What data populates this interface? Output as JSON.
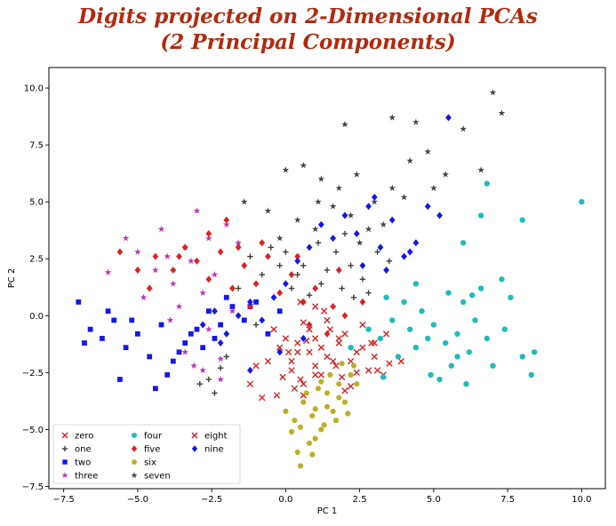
{
  "chart_data": {
    "type": "scatter",
    "title_lines": [
      "Digits projected on 2-Dimensional PCAs",
      "(2 Principal Components)"
    ],
    "xlabel": "PC 1",
    "ylabel": "PC 2",
    "xlim": [
      -8.0,
      10.8
    ],
    "ylim": [
      -7.6,
      10.9
    ],
    "xticks": [
      -7.5,
      -5.0,
      -2.5,
      0.0,
      2.5,
      5.0,
      7.5,
      10.0
    ],
    "xtick_labels": [
      "−7.5",
      "−5.0",
      "−2.5",
      "0.0",
      "2.5",
      "5.0",
      "7.5",
      "10.0"
    ],
    "yticks": [
      -7.5,
      -5.0,
      -2.5,
      0.0,
      2.5,
      5.0,
      7.5,
      10.0
    ],
    "ytick_labels": [
      "−7.5",
      "−5.0",
      "−2.5",
      "0.0",
      "2.5",
      "5.0",
      "7.5",
      "10.0"
    ],
    "grid": false,
    "legend_position": "lower-left",
    "legend_columns": 3,
    "series": [
      {
        "name": "zero",
        "marker": "x",
        "color": "#dd2222",
        "points": [
          [
            0.6,
            -0.3
          ],
          [
            1.0,
            -1.0
          ],
          [
            0.8,
            -1.6
          ],
          [
            1.4,
            -1.8
          ],
          [
            1.7,
            -2.2
          ],
          [
            2.2,
            -2.0
          ],
          [
            2.6,
            -1.4
          ],
          [
            3.0,
            -1.8
          ],
          [
            3.5,
            -2.1
          ],
          [
            3.9,
            -2.0
          ],
          [
            2.0,
            -3.3
          ],
          [
            1.2,
            -2.6
          ],
          [
            0.2,
            -2.4
          ],
          [
            0.3,
            -3.2
          ],
          [
            0.6,
            -3.5
          ],
          [
            1.5,
            -0.6
          ],
          [
            0.4,
            -1.2
          ],
          [
            1.8,
            -1.0
          ],
          [
            2.9,
            -1.2
          ],
          [
            3.3,
            -2.6
          ],
          [
            1.0,
            -2.2
          ],
          [
            0.1,
            -1.6
          ],
          [
            2.4,
            -2.5
          ],
          [
            -1.0,
            -2.2
          ],
          [
            -0.8,
            -3.6
          ],
          [
            -1.2,
            -3.0
          ],
          [
            -0.3,
            -3.5
          ],
          [
            3.1,
            -2.4
          ],
          [
            1.3,
            0.2
          ],
          [
            0.5,
            -2.8
          ]
        ]
      },
      {
        "name": "one",
        "marker": "+",
        "color": "#3a4030",
        "points": [
          [
            -1.2,
            2.6
          ],
          [
            -0.5,
            3.0
          ],
          [
            0.0,
            2.8
          ],
          [
            0.6,
            2.2
          ],
          [
            1.1,
            3.2
          ],
          [
            1.7,
            2.8
          ],
          [
            2.2,
            2.2
          ],
          [
            2.6,
            1.6
          ],
          [
            1.9,
            1.2
          ],
          [
            1.2,
            1.4
          ],
          [
            0.4,
            1.8
          ],
          [
            -0.2,
            2.2
          ],
          [
            -0.8,
            1.8
          ],
          [
            -1.6,
            1.2
          ],
          [
            -2.0,
            -1.8
          ],
          [
            -2.6,
            -2.8
          ],
          [
            -2.4,
            -3.4
          ],
          [
            -2.9,
            -3.0
          ],
          [
            -2.2,
            -2.3
          ],
          [
            0.8,
            0.9
          ],
          [
            1.6,
            0.4
          ],
          [
            2.3,
            0.8
          ],
          [
            2.8,
            1.0
          ],
          [
            3.1,
            2.8
          ],
          [
            3.5,
            2.4
          ],
          [
            -0.4,
            0.8
          ],
          [
            0.2,
            1.2
          ],
          [
            2.0,
            3.6
          ],
          [
            1.4,
            2.0
          ],
          [
            -1.0,
            -0.4
          ]
        ]
      },
      {
        "name": "two",
        "marker": "s",
        "color": "#1515ee",
        "points": [
          [
            -7.0,
            0.6
          ],
          [
            -6.6,
            -0.6
          ],
          [
            -6.2,
            -1.0
          ],
          [
            -5.8,
            -0.2
          ],
          [
            -5.4,
            -1.4
          ],
          [
            -5.0,
            -0.8
          ],
          [
            -4.6,
            -1.8
          ],
          [
            -4.2,
            -0.4
          ],
          [
            -3.8,
            -2.0
          ],
          [
            -3.4,
            -1.2
          ],
          [
            -3.0,
            -0.6
          ],
          [
            -2.6,
            0.2
          ],
          [
            -2.2,
            -0.4
          ],
          [
            -1.8,
            0.4
          ],
          [
            -1.4,
            -0.2
          ],
          [
            -1.0,
            0.6
          ],
          [
            -0.6,
            -0.8
          ],
          [
            -0.2,
            0.2
          ],
          [
            -4.4,
            -3.2
          ],
          [
            -5.6,
            -2.8
          ],
          [
            -6.8,
            -1.2
          ],
          [
            -5.2,
            -0.2
          ],
          [
            -3.6,
            -1.6
          ],
          [
            -2.8,
            -1.4
          ],
          [
            -2.0,
            0.8
          ],
          [
            -1.2,
            0.4
          ],
          [
            -4.0,
            -2.6
          ],
          [
            -6.0,
            0.2
          ],
          [
            -3.2,
            -0.8
          ],
          [
            -2.4,
            -1.0
          ]
        ]
      },
      {
        "name": "three",
        "marker": "*",
        "color": "#bb33bb",
        "points": [
          [
            -5.0,
            2.8
          ],
          [
            -4.4,
            2.0
          ],
          [
            -3.8,
            1.4
          ],
          [
            -3.2,
            2.4
          ],
          [
            -2.8,
            1.0
          ],
          [
            -2.4,
            1.8
          ],
          [
            -2.0,
            4.0
          ],
          [
            -3.0,
            4.6
          ],
          [
            -4.2,
            3.8
          ],
          [
            -5.4,
            3.4
          ],
          [
            -6.0,
            1.9
          ],
          [
            -3.6,
            0.4
          ],
          [
            -2.6,
            -0.6
          ],
          [
            -3.4,
            -1.6
          ],
          [
            -2.8,
            -2.4
          ],
          [
            -2.2,
            -1.9
          ],
          [
            -3.9,
            -0.2
          ],
          [
            -4.8,
            0.8
          ],
          [
            -1.6,
            3.2
          ],
          [
            -2.6,
            3.4
          ],
          [
            -3.4,
            3.0
          ],
          [
            -4.0,
            2.6
          ],
          [
            -1.8,
            0.2
          ],
          [
            -2.2,
            -2.8
          ],
          [
            -3.1,
            -2.2
          ]
        ]
      },
      {
        "name": "four",
        "marker": "o",
        "color": "#22bbbb",
        "points": [
          [
            2.2,
            -1.4
          ],
          [
            2.8,
            -0.6
          ],
          [
            3.2,
            -1.0
          ],
          [
            3.6,
            -0.2
          ],
          [
            3.8,
            -1.8
          ],
          [
            4.2,
            -0.6
          ],
          [
            4.4,
            -1.4
          ],
          [
            4.6,
            0.2
          ],
          [
            4.8,
            -1.0
          ],
          [
            5.0,
            -0.4
          ],
          [
            5.4,
            -1.2
          ],
          [
            5.6,
            -2.2
          ],
          [
            5.8,
            -0.8
          ],
          [
            6.0,
            0.6
          ],
          [
            6.2,
            -1.6
          ],
          [
            6.4,
            -0.2
          ],
          [
            6.6,
            1.2
          ],
          [
            6.8,
            -1.0
          ],
          [
            7.0,
            -2.2
          ],
          [
            7.4,
            -0.6
          ],
          [
            7.6,
            0.8
          ],
          [
            8.0,
            -1.8
          ],
          [
            8.3,
            -2.6
          ],
          [
            8.4,
            -1.6
          ],
          [
            7.3,
            1.6
          ],
          [
            6.0,
            3.2
          ],
          [
            6.6,
            4.4
          ],
          [
            6.8,
            5.8
          ],
          [
            8.0,
            4.2
          ],
          [
            10.0,
            5.0
          ],
          [
            5.5,
            1.0
          ],
          [
            4.4,
            1.4
          ],
          [
            4.0,
            0.6
          ],
          [
            3.4,
            0.8
          ],
          [
            5.2,
            -2.8
          ],
          [
            6.1,
            -3.0
          ],
          [
            4.9,
            -2.6
          ],
          [
            3.3,
            -2.7
          ],
          [
            5.8,
            -1.8
          ],
          [
            6.3,
            0.9
          ]
        ]
      },
      {
        "name": "five",
        "marker": "D",
        "color": "#dd2222",
        "points": [
          [
            -5.6,
            2.8
          ],
          [
            -5.0,
            2.0
          ],
          [
            -4.4,
            2.6
          ],
          [
            -3.8,
            2.0
          ],
          [
            -3.4,
            3.0
          ],
          [
            -3.0,
            2.4
          ],
          [
            -2.6,
            1.6
          ],
          [
            -2.2,
            2.8
          ],
          [
            -1.8,
            1.2
          ],
          [
            -1.4,
            2.2
          ],
          [
            -1.0,
            1.4
          ],
          [
            -0.6,
            2.6
          ],
          [
            -0.2,
            1.0
          ],
          [
            0.2,
            1.8
          ],
          [
            0.6,
            0.6
          ],
          [
            1.0,
            1.2
          ],
          [
            1.6,
            0.4
          ],
          [
            2.0,
            0.0
          ],
          [
            1.4,
            -0.8
          ],
          [
            0.8,
            -0.4
          ],
          [
            -2.6,
            3.6
          ],
          [
            -2.0,
            4.2
          ],
          [
            -1.6,
            3.0
          ],
          [
            -3.6,
            2.6
          ],
          [
            -4.6,
            1.2
          ],
          [
            0.4,
            2.6
          ],
          [
            -0.8,
            3.2
          ],
          [
            1.8,
            2.0
          ],
          [
            2.6,
            0.6
          ],
          [
            -1.2,
            0.4
          ]
        ]
      },
      {
        "name": "six",
        "marker": "h",
        "color": "#bbb022",
        "points": [
          [
            0.0,
            -4.2
          ],
          [
            0.3,
            -4.6
          ],
          [
            0.6,
            -3.8
          ],
          [
            0.9,
            -4.4
          ],
          [
            1.2,
            -5.0
          ],
          [
            1.4,
            -3.4
          ],
          [
            1.6,
            -4.2
          ],
          [
            1.8,
            -3.0
          ],
          [
            2.0,
            -3.8
          ],
          [
            2.2,
            -2.6
          ],
          [
            0.8,
            -5.6
          ],
          [
            0.4,
            -6.0
          ],
          [
            0.5,
            -6.6
          ],
          [
            1.0,
            -5.4
          ],
          [
            1.3,
            -4.8
          ],
          [
            1.7,
            -4.6
          ],
          [
            2.4,
            -3.0
          ],
          [
            1.1,
            -3.2
          ],
          [
            0.2,
            -5.1
          ],
          [
            1.9,
            -2.1
          ],
          [
            1.5,
            -2.6
          ],
          [
            0.7,
            -3.4
          ],
          [
            1.4,
            -4.0
          ],
          [
            2.1,
            -4.3
          ],
          [
            1.0,
            -4.1
          ],
          [
            0.5,
            -4.9
          ],
          [
            1.8,
            -3.6
          ],
          [
            1.2,
            -2.9
          ],
          [
            2.3,
            -2.2
          ],
          [
            0.9,
            -6.1
          ]
        ]
      },
      {
        "name": "seven",
        "marker": "*",
        "color": "#444444",
        "points": [
          [
            0.0,
            6.4
          ],
          [
            0.6,
            6.6
          ],
          [
            1.2,
            6.0
          ],
          [
            1.8,
            5.6
          ],
          [
            2.4,
            6.2
          ],
          [
            3.0,
            5.0
          ],
          [
            3.6,
            5.6
          ],
          [
            4.2,
            6.8
          ],
          [
            4.8,
            7.2
          ],
          [
            5.4,
            6.2
          ],
          [
            6.0,
            8.2
          ],
          [
            6.6,
            6.4
          ],
          [
            7.0,
            9.8
          ],
          [
            7.3,
            8.9
          ],
          [
            2.0,
            8.4
          ],
          [
            3.6,
            8.7
          ],
          [
            4.4,
            8.5
          ],
          [
            1.0,
            3.8
          ],
          [
            2.2,
            4.4
          ],
          [
            2.8,
            3.8
          ],
          [
            -0.6,
            4.6
          ],
          [
            0.4,
            4.2
          ],
          [
            1.6,
            4.8
          ],
          [
            3.3,
            4.0
          ],
          [
            4.0,
            5.2
          ],
          [
            5.0,
            5.6
          ],
          [
            -1.4,
            5.0
          ],
          [
            -0.2,
            3.4
          ],
          [
            1.1,
            5.0
          ],
          [
            2.5,
            3.2
          ]
        ]
      },
      {
        "name": "eight",
        "marker": "x",
        "color": "#cc2222",
        "points": [
          [
            -0.4,
            -0.6
          ],
          [
            0.0,
            -1.0
          ],
          [
            0.4,
            -1.6
          ],
          [
            0.8,
            -0.6
          ],
          [
            1.2,
            -1.4
          ],
          [
            1.6,
            -2.0
          ],
          [
            2.0,
            -0.8
          ],
          [
            2.4,
            -1.6
          ],
          [
            2.8,
            -2.4
          ],
          [
            1.0,
            -2.6
          ],
          [
            0.6,
            -3.0
          ],
          [
            0.2,
            -2.0
          ],
          [
            -0.2,
            -1.4
          ],
          [
            1.4,
            -0.2
          ],
          [
            1.8,
            -1.2
          ],
          [
            2.6,
            -0.4
          ],
          [
            3.0,
            -1.2
          ],
          [
            3.4,
            -0.8
          ],
          [
            0.5,
            0.6
          ],
          [
            1.0,
            0.4
          ],
          [
            -0.6,
            -2.0
          ],
          [
            0.7,
            -1.1
          ],
          [
            1.9,
            -2.7
          ],
          [
            2.2,
            -3.1
          ],
          [
            -0.1,
            -2.7
          ]
        ]
      },
      {
        "name": "nine",
        "marker": "D",
        "color": "#1515ee",
        "points": [
          [
            -2.8,
            -0.4
          ],
          [
            -2.4,
            0.2
          ],
          [
            -2.0,
            -0.8
          ],
          [
            -1.6,
            0.0
          ],
          [
            -1.2,
            0.6
          ],
          [
            -0.8,
            -0.2
          ],
          [
            -0.4,
            0.8
          ],
          [
            0.0,
            1.4
          ],
          [
            0.4,
            2.4
          ],
          [
            0.8,
            3.0
          ],
          [
            1.2,
            4.0
          ],
          [
            1.6,
            3.4
          ],
          [
            2.0,
            4.4
          ],
          [
            2.4,
            3.6
          ],
          [
            2.8,
            4.8
          ],
          [
            3.2,
            3.0
          ],
          [
            3.6,
            4.2
          ],
          [
            4.0,
            2.6
          ],
          [
            4.4,
            3.2
          ],
          [
            4.8,
            4.8
          ],
          [
            5.2,
            4.4
          ],
          [
            5.5,
            8.7
          ],
          [
            3.0,
            5.2
          ],
          [
            2.6,
            2.2
          ],
          [
            3.4,
            2.0
          ],
          [
            4.2,
            2.8
          ],
          [
            -1.2,
            -2.4
          ],
          [
            -2.2,
            -1.2
          ],
          [
            0.6,
            -1.0
          ],
          [
            -0.2,
            -1.6
          ]
        ]
      }
    ]
  }
}
